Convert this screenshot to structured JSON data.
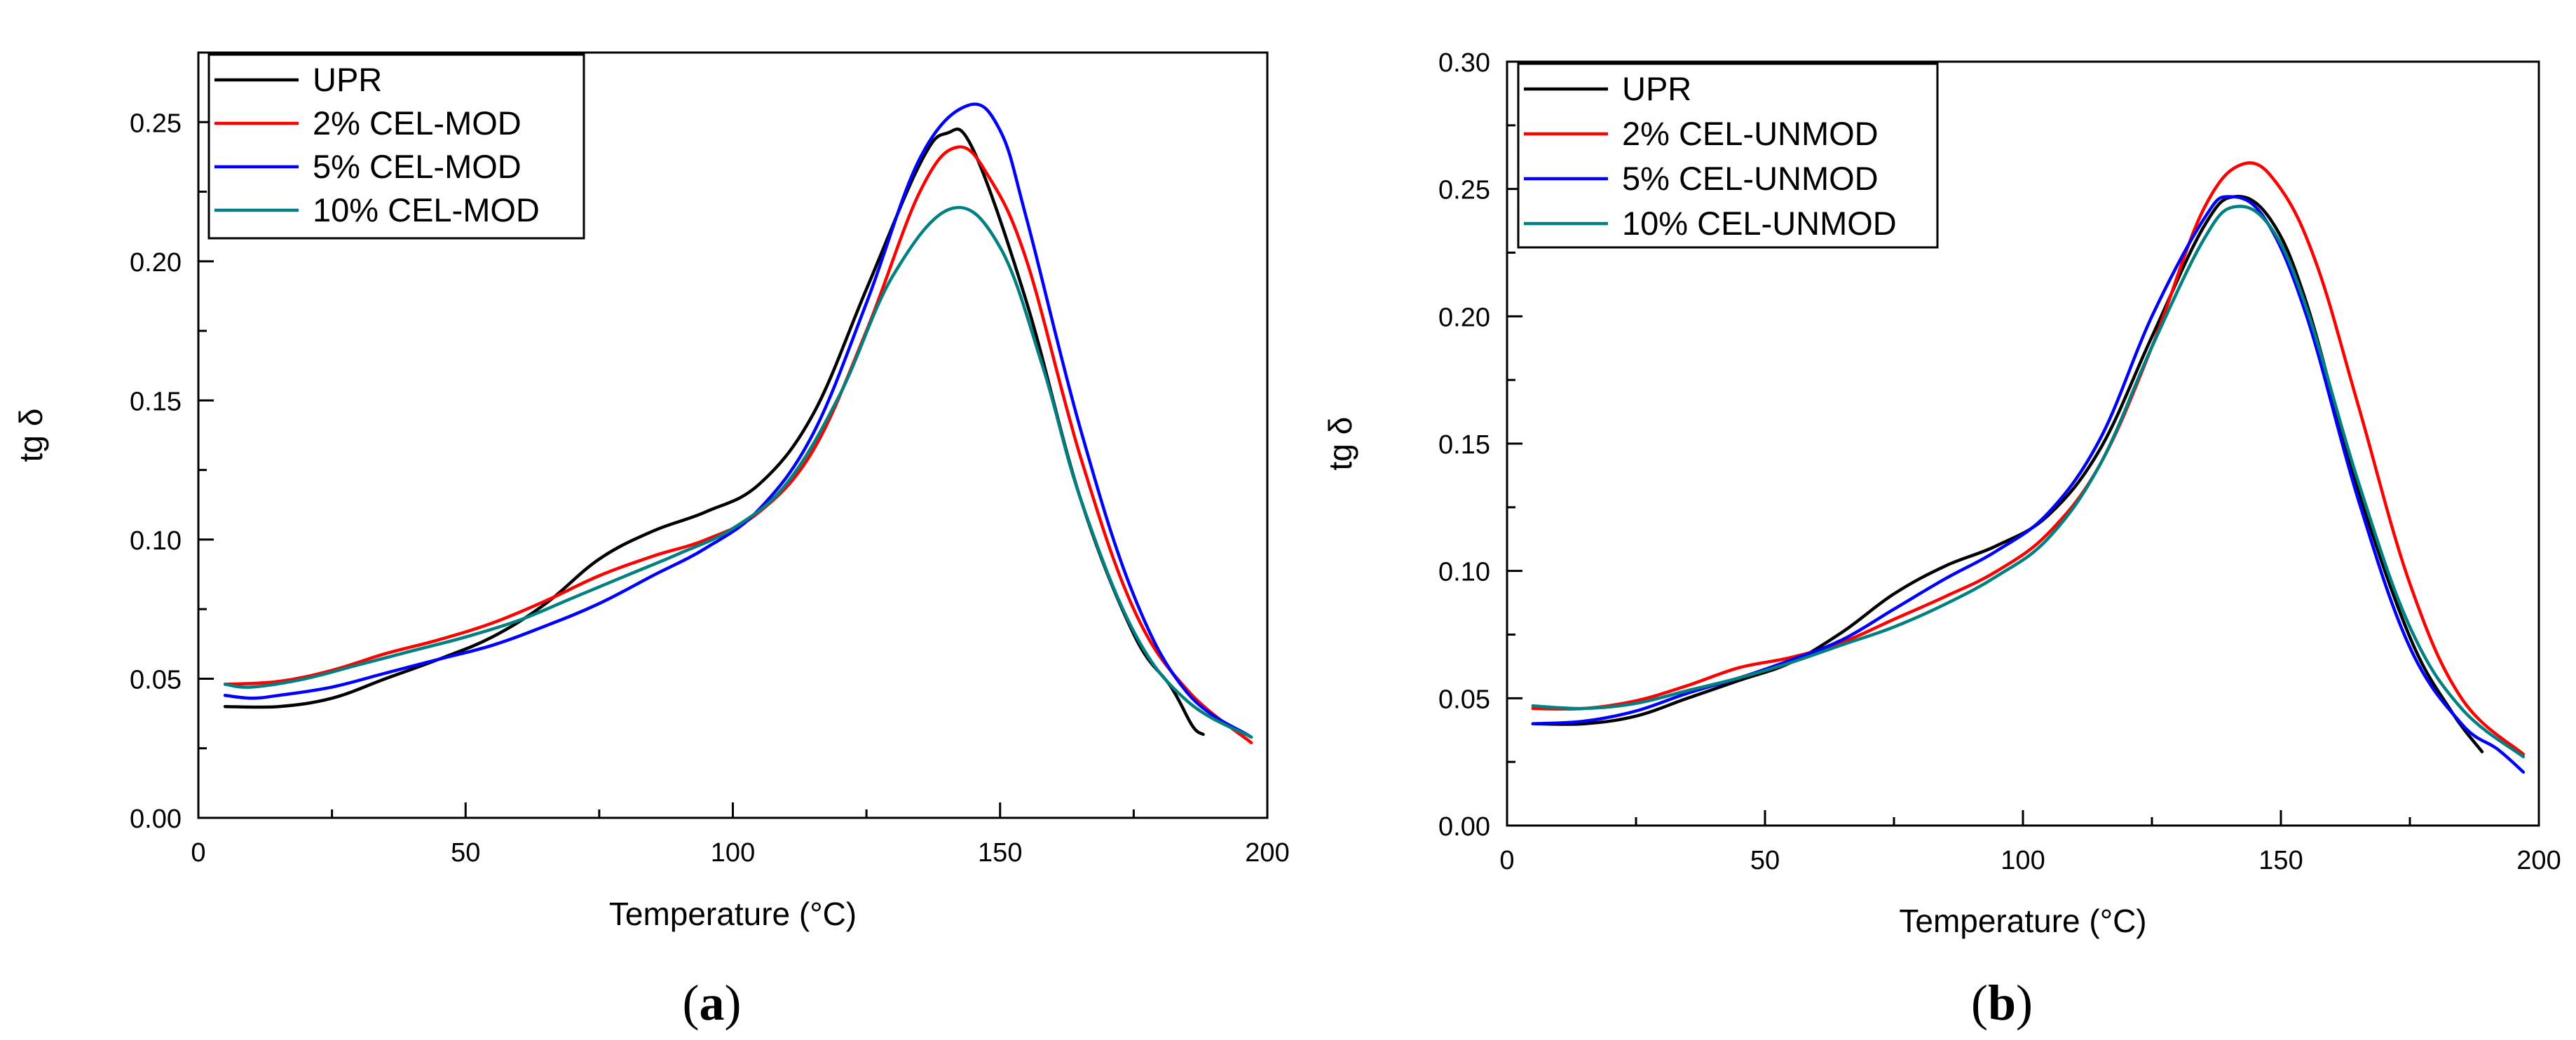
{
  "chart_data": [
    {
      "type": "line",
      "panel_label": "(a)",
      "panel_letter": "a",
      "xlabel": "Temperature (°C)",
      "ylabel": "tg δ",
      "xlim": [
        0,
        200
      ],
      "ylim": [
        0,
        0.275
      ],
      "xticks": [
        0,
        50,
        100,
        150,
        200
      ],
      "xtick_labels": [
        "0",
        "50",
        "100",
        "150",
        "200"
      ],
      "yticks": [
        0,
        0.05,
        0.1,
        0.15,
        0.2,
        0.25
      ],
      "ytick_labels": [
        "0.00",
        "0.05",
        "0.10",
        "0.15",
        "0.20",
        "0.25"
      ],
      "legend_position": "top-left",
      "grid": false,
      "series": [
        {
          "name": "UPR",
          "color": "#000000",
          "points": [
            [
              5,
              0.04
            ],
            [
              15,
              0.04
            ],
            [
              25,
              0.043
            ],
            [
              35,
              0.05
            ],
            [
              45,
              0.057
            ],
            [
              55,
              0.065
            ],
            [
              65,
              0.077
            ],
            [
              75,
              0.093
            ],
            [
              85,
              0.103
            ],
            [
              95,
              0.11
            ],
            [
              105,
              0.12
            ],
            [
              115,
              0.145
            ],
            [
              125,
              0.19
            ],
            [
              135,
              0.235
            ],
            [
              140,
              0.246
            ],
            [
              145,
              0.24
            ],
            [
              155,
              0.185
            ],
            [
              165,
              0.115
            ],
            [
              175,
              0.066
            ],
            [
              182,
              0.047
            ],
            [
              186,
              0.033
            ],
            [
              188,
              0.03
            ]
          ]
        },
        {
          "name": "2% CEL-MOD",
          "color": "#ff0000",
          "points": [
            [
              5,
              0.048
            ],
            [
              15,
              0.049
            ],
            [
              25,
              0.053
            ],
            [
              35,
              0.059
            ],
            [
              45,
              0.064
            ],
            [
              55,
              0.07
            ],
            [
              65,
              0.078
            ],
            [
              75,
              0.087
            ],
            [
              85,
              0.094
            ],
            [
              95,
              0.1
            ],
            [
              105,
              0.11
            ],
            [
              115,
              0.132
            ],
            [
              125,
              0.175
            ],
            [
              135,
              0.225
            ],
            [
              142,
              0.241
            ],
            [
              148,
              0.23
            ],
            [
              155,
              0.2
            ],
            [
              165,
              0.13
            ],
            [
              175,
              0.075
            ],
            [
              185,
              0.046
            ],
            [
              197,
              0.027
            ]
          ]
        },
        {
          "name": "5% CEL-MOD",
          "color": "#0000ff",
          "points": [
            [
              5,
              0.044
            ],
            [
              10,
              0.043
            ],
            [
              15,
              0.044
            ],
            [
              25,
              0.047
            ],
            [
              35,
              0.052
            ],
            [
              45,
              0.057
            ],
            [
              55,
              0.062
            ],
            [
              65,
              0.069
            ],
            [
              75,
              0.077
            ],
            [
              85,
              0.087
            ],
            [
              95,
              0.097
            ],
            [
              105,
              0.111
            ],
            [
              115,
              0.138
            ],
            [
              125,
              0.185
            ],
            [
              135,
              0.237
            ],
            [
              144,
              0.256
            ],
            [
              150,
              0.247
            ],
            [
              155,
              0.215
            ],
            [
              165,
              0.14
            ],
            [
              175,
              0.08
            ],
            [
              185,
              0.045
            ],
            [
              197,
              0.029
            ]
          ]
        },
        {
          "name": "10% CEL-MOD",
          "color": "#008080",
          "points": [
            [
              5,
              0.048
            ],
            [
              10,
              0.047
            ],
            [
              20,
              0.05
            ],
            [
              30,
              0.055
            ],
            [
              40,
              0.06
            ],
            [
              50,
              0.065
            ],
            [
              60,
              0.071
            ],
            [
              70,
              0.079
            ],
            [
              80,
              0.087
            ],
            [
              90,
              0.095
            ],
            [
              100,
              0.104
            ],
            [
              110,
              0.12
            ],
            [
              120,
              0.152
            ],
            [
              130,
              0.195
            ],
            [
              141,
              0.219
            ],
            [
              150,
              0.205
            ],
            [
              158,
              0.162
            ],
            [
              165,
              0.115
            ],
            [
              175,
              0.067
            ],
            [
              185,
              0.042
            ],
            [
              197,
              0.029
            ]
          ]
        }
      ]
    },
    {
      "type": "line",
      "panel_label": "(b)",
      "panel_letter": "b",
      "xlabel": "Temperature (°C)",
      "ylabel": "tg δ",
      "xlim": [
        0,
        200
      ],
      "ylim": [
        0,
        0.3
      ],
      "xticks": [
        0,
        50,
        100,
        150,
        200
      ],
      "xtick_labels": [
        "0",
        "50",
        "100",
        "150",
        "200"
      ],
      "yticks": [
        0,
        0.05,
        0.1,
        0.15,
        0.2,
        0.25,
        0.3
      ],
      "ytick_labels": [
        "0.00",
        "0.05",
        "0.10",
        "0.15",
        "0.20",
        "0.25",
        "0.30"
      ],
      "legend_position": "top-left",
      "grid": false,
      "series": [
        {
          "name": "UPR",
          "color": "#000000",
          "points": [
            [
              5,
              0.04
            ],
            [
              15,
              0.04
            ],
            [
              25,
              0.043
            ],
            [
              35,
              0.05
            ],
            [
              45,
              0.057
            ],
            [
              55,
              0.064
            ],
            [
              65,
              0.076
            ],
            [
              75,
              0.091
            ],
            [
              85,
              0.102
            ],
            [
              95,
              0.11
            ],
            [
              105,
              0.122
            ],
            [
              115,
              0.148
            ],
            [
              125,
              0.192
            ],
            [
              135,
              0.235
            ],
            [
              141,
              0.247
            ],
            [
              148,
              0.238
            ],
            [
              155,
              0.205
            ],
            [
              165,
              0.132
            ],
            [
              175,
              0.074
            ],
            [
              183,
              0.045
            ],
            [
              189,
              0.029
            ]
          ]
        },
        {
          "name": "2% CEL-UNMOD",
          "color": "#ff0000",
          "points": [
            [
              5,
              0.046
            ],
            [
              15,
              0.046
            ],
            [
              25,
              0.049
            ],
            [
              35,
              0.055
            ],
            [
              45,
              0.062
            ],
            [
              55,
              0.066
            ],
            [
              65,
              0.072
            ],
            [
              75,
              0.081
            ],
            [
              85,
              0.09
            ],
            [
              95,
              0.1
            ],
            [
              105,
              0.115
            ],
            [
              115,
              0.142
            ],
            [
              125,
              0.188
            ],
            [
              135,
              0.242
            ],
            [
              143,
              0.26
            ],
            [
              150,
              0.25
            ],
            [
              157,
              0.22
            ],
            [
              165,
              0.165
            ],
            [
              175,
              0.095
            ],
            [
              185,
              0.05
            ],
            [
              197,
              0.028
            ]
          ]
        },
        {
          "name": "5% CEL-UNMOD",
          "color": "#0000ff",
          "points": [
            [
              5,
              0.04
            ],
            [
              15,
              0.041
            ],
            [
              25,
              0.045
            ],
            [
              35,
              0.052
            ],
            [
              45,
              0.058
            ],
            [
              55,
              0.065
            ],
            [
              65,
              0.073
            ],
            [
              75,
              0.085
            ],
            [
              85,
              0.097
            ],
            [
              95,
              0.108
            ],
            [
              105,
              0.123
            ],
            [
              115,
              0.152
            ],
            [
              125,
              0.2
            ],
            [
              135,
              0.238
            ],
            [
              140,
              0.247
            ],
            [
              147,
              0.238
            ],
            [
              155,
              0.2
            ],
            [
              165,
              0.128
            ],
            [
              175,
              0.07
            ],
            [
              185,
              0.04
            ],
            [
              192,
              0.03
            ],
            [
              197,
              0.021
            ]
          ]
        },
        {
          "name": "10% CEL-UNMOD",
          "color": "#008080",
          "points": [
            [
              5,
              0.047
            ],
            [
              15,
              0.046
            ],
            [
              25,
              0.048
            ],
            [
              35,
              0.053
            ],
            [
              45,
              0.058
            ],
            [
              55,
              0.064
            ],
            [
              65,
              0.071
            ],
            [
              75,
              0.078
            ],
            [
              85,
              0.087
            ],
            [
              95,
              0.098
            ],
            [
              105,
              0.113
            ],
            [
              115,
              0.142
            ],
            [
              125,
              0.188
            ],
            [
              135,
              0.23
            ],
            [
              141,
              0.243
            ],
            [
              148,
              0.235
            ],
            [
              155,
              0.203
            ],
            [
              165,
              0.135
            ],
            [
              175,
              0.078
            ],
            [
              185,
              0.046
            ],
            [
              197,
              0.027
            ]
          ]
        }
      ]
    }
  ]
}
